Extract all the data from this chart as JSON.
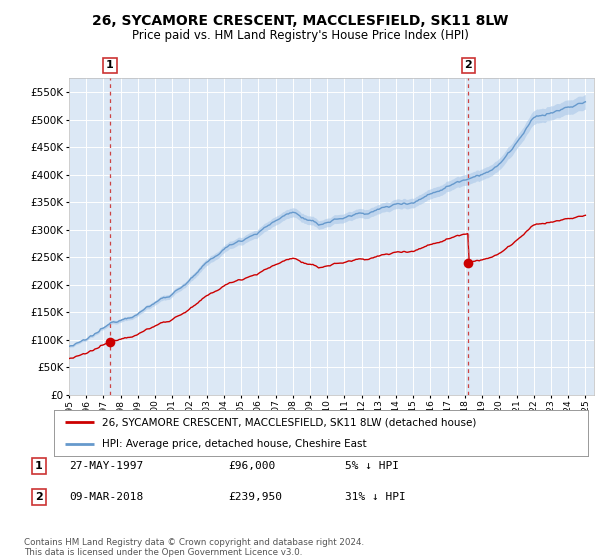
{
  "title": "26, SYCAMORE CRESCENT, MACCLESFIELD, SK11 8LW",
  "subtitle": "Price paid vs. HM Land Registry's House Price Index (HPI)",
  "legend_line1": "26, SYCAMORE CRESCENT, MACCLESFIELD, SK11 8LW (detached house)",
  "legend_line2": "HPI: Average price, detached house, Cheshire East",
  "footer": "Contains HM Land Registry data © Crown copyright and database right 2024.\nThis data is licensed under the Open Government Licence v3.0.",
  "sale1_label": "1",
  "sale1_date": "27-MAY-1997",
  "sale1_price": "£96,000",
  "sale1_hpi": "5% ↓ HPI",
  "sale1_year": 1997.38,
  "sale1_value": 96000,
  "sale2_label": "2",
  "sale2_date": "09-MAR-2018",
  "sale2_price": "£239,950",
  "sale2_hpi": "31% ↓ HPI",
  "sale2_year": 2018.19,
  "sale2_value": 239950,
  "ylim": [
    0,
    575000
  ],
  "yticks": [
    0,
    50000,
    100000,
    150000,
    200000,
    250000,
    300000,
    350000,
    400000,
    450000,
    500000,
    550000
  ],
  "plot_bg": "#dce8f5",
  "red_line_color": "#cc0000",
  "blue_line_color": "#6699cc",
  "blue_fill_color": "#aac8e8",
  "marker_color": "#cc0000",
  "vline_color": "#cc4444",
  "annotation_box_color": "#cc3333",
  "xmin": 1995.0,
  "xmax": 2025.5
}
